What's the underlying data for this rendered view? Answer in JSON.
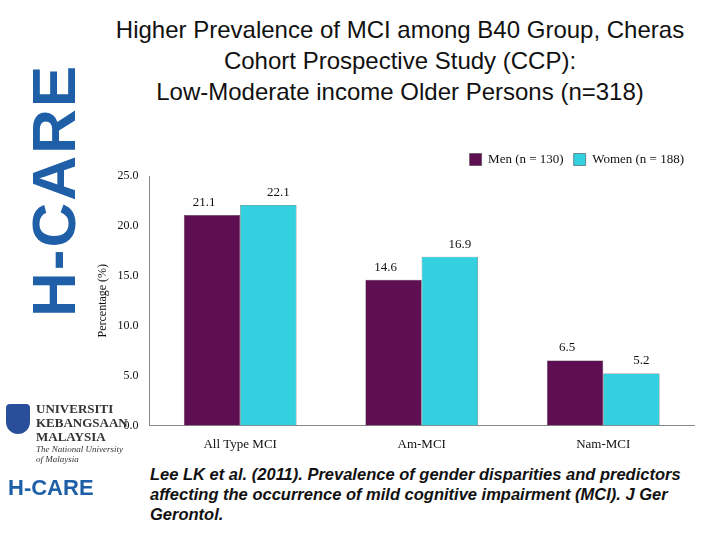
{
  "chart_data": {
    "type": "bar",
    "title": [
      "Higher Prevalence of MCI among B40 Group, Cheras",
      "Cohort Prospective Study (CCP):",
      "Low-Moderate income Older Persons (n=318)"
    ],
    "y_label": "Percentage (%)",
    "categories": [
      "All Type MCI",
      "Am-MCI",
      "Nam-MCI"
    ],
    "series": [
      {
        "name": "Men (n = 130)",
        "color": "#5e0f52",
        "values": [
          21.1,
          14.6,
          6.5
        ]
      },
      {
        "name": "Women (n = 188)",
        "color": "#33d0e0",
        "values": [
          22.1,
          16.9,
          5.2
        ]
      }
    ],
    "ylim": [
      0,
      25
    ],
    "yticks": [
      {
        "value": 0,
        "label": "0.0"
      },
      {
        "value": 5,
        "label": "5.0"
      },
      {
        "value": 10,
        "label": "10.0"
      },
      {
        "value": 15,
        "label": "15.0"
      },
      {
        "value": 20,
        "label": "20.0"
      },
      {
        "value": 25,
        "label": "25.0"
      }
    ],
    "grid": false,
    "legend": "top-right",
    "data_labels": true
  },
  "slide": {
    "brand": "H-CARE",
    "logos": {
      "university": "UNIVERSITI KEBANGSAAN MALAYSIA",
      "university_sub": "The National University of Malaysia",
      "centre": "H-CARE"
    },
    "citation": "Lee LK et al. (2011). Prevalence of gender disparities and predictors affecting the occurrence of mild cognitive impairment (MCI). J Ger Gerontol."
  }
}
